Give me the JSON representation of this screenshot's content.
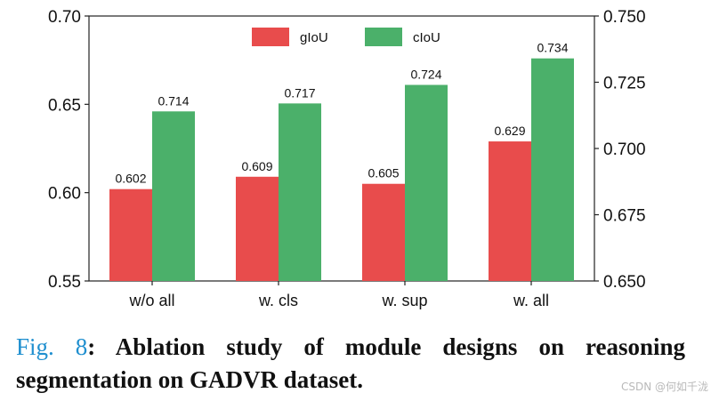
{
  "chart_data": {
    "type": "bar",
    "categories": [
      "w/o all",
      "w. cls",
      "w. sup",
      "w. all"
    ],
    "series": [
      {
        "name": "gIoU",
        "axis": "left",
        "color": "#e84c4c",
        "values": [
          0.602,
          0.609,
          0.605,
          0.629
        ],
        "labels": [
          "0.602",
          "0.609",
          "0.605",
          "0.629"
        ]
      },
      {
        "name": "cIoU",
        "axis": "right",
        "color": "#4bb06a",
        "values": [
          0.714,
          0.717,
          0.724,
          0.734
        ],
        "labels": [
          "0.714",
          "0.717",
          "0.724",
          "0.734"
        ]
      }
    ],
    "y_left": {
      "range": [
        0.55,
        0.7
      ],
      "ticks": [
        0.55,
        0.6,
        0.65,
        0.7
      ],
      "tick_labels": [
        "0.55",
        "0.60",
        "0.65",
        "0.70"
      ]
    },
    "y_right": {
      "range": [
        0.65,
        0.75
      ],
      "ticks": [
        0.65,
        0.675,
        0.7,
        0.725,
        0.75
      ],
      "tick_labels": [
        "0.650",
        "0.675",
        "0.700",
        "0.725",
        "0.750"
      ]
    },
    "legend_position": "top-center",
    "grid": false
  },
  "caption": {
    "label": "Fig. 8",
    "colon": ":",
    "text": " Ablation study of module designs on reasoning segmentation on GADVR dataset."
  },
  "watermark": "CSDN @何如千泷"
}
